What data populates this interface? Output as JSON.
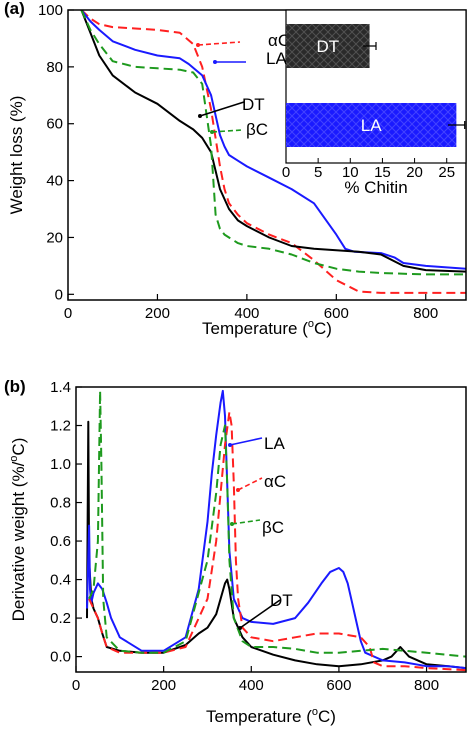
{
  "chart_data": [
    {
      "panel_label": "(a)",
      "type": "line",
      "xlabel": "Temperature (",
      "xlabel_sup": "o",
      "xlabel_tail": "C)",
      "ylabel": "Weight loss (%)",
      "xlim": [
        0,
        890
      ],
      "ylim": [
        -2,
        100
      ],
      "xticks": [
        0,
        200,
        400,
        600,
        800
      ],
      "yticks": [
        0,
        20,
        40,
        60,
        80,
        100
      ],
      "series": [
        {
          "name": "αC",
          "color": "#ff2020",
          "style": "dashed",
          "x": [
            30,
            50,
            70,
            100,
            150,
            200,
            250,
            280,
            300,
            320,
            340,
            350,
            360,
            380,
            400,
            450,
            500,
            550,
            600,
            650,
            700,
            750,
            800,
            890
          ],
          "y": [
            100,
            97,
            95,
            94,
            93.5,
            93,
            92,
            88,
            80,
            65,
            45,
            37,
            32,
            28,
            25,
            21,
            18,
            12,
            5,
            1,
            0.5,
            0.5,
            0.5,
            0.5
          ]
        },
        {
          "name": "LA",
          "color": "#1a1aff",
          "style": "solid",
          "x": [
            30,
            50,
            70,
            100,
            150,
            200,
            250,
            270,
            300,
            320,
            340,
            350,
            360,
            380,
            400,
            450,
            500,
            550,
            600,
            620,
            640,
            700,
            730,
            750,
            800,
            890
          ],
          "y": [
            100,
            96,
            93,
            89,
            86,
            84,
            83,
            81,
            77,
            70,
            56,
            52,
            49,
            47,
            45,
            41,
            37,
            32,
            21,
            16,
            15,
            14.5,
            13,
            11,
            10,
            9
          ]
        },
        {
          "name": "DT",
          "color": "#000000",
          "style": "solid",
          "x": [
            30,
            50,
            70,
            100,
            150,
            200,
            250,
            280,
            300,
            320,
            340,
            360,
            380,
            400,
            450,
            500,
            550,
            600,
            650,
            700,
            750,
            800,
            890
          ],
          "y": [
            100,
            92,
            84,
            77,
            71,
            67,
            61,
            58,
            55,
            50,
            37,
            30,
            26,
            24,
            20,
            17,
            16,
            15.5,
            15,
            14,
            10,
            8.5,
            8
          ]
        },
        {
          "name": "βC",
          "color": "#1e9a1e",
          "style": "dashed",
          "x": [
            30,
            50,
            70,
            100,
            150,
            200,
            250,
            280,
            300,
            320,
            330,
            340,
            350,
            360,
            380,
            400,
            450,
            500,
            550,
            600,
            650,
            700,
            800,
            890
          ],
          "y": [
            100,
            93,
            88,
            82,
            80,
            79.5,
            79,
            78,
            74,
            52,
            28,
            23,
            21,
            20,
            18,
            17,
            16,
            14,
            11,
            9,
            8,
            7.5,
            7,
            7
          ]
        }
      ],
      "series_labels": [
        {
          "text": "αC"
        },
        {
          "text": "LA"
        },
        {
          "text": "DT"
        },
        {
          "text": "βC"
        }
      ],
      "inset": {
        "type": "bar",
        "orientation": "horizontal",
        "xlabel": "% Chitin",
        "xlim": [
          0,
          28
        ],
        "xticks": [
          0,
          5,
          10,
          15,
          20,
          25
        ],
        "bars": [
          {
            "label": "DT",
            "value": 13,
            "error": 1,
            "color": "#2a2a2a",
            "label_color": "#ffffff"
          },
          {
            "label": "LA",
            "value": 26.5,
            "error": 1.3,
            "color": "#1a1aff",
            "label_color": "#ffffff"
          }
        ]
      }
    },
    {
      "panel_label": "(b)",
      "type": "line",
      "xlabel": "Temperature (",
      "xlabel_sup": "o",
      "xlabel_tail": "C)",
      "ylabel": "Derivative weight (%/",
      "ylabel_sup": "o",
      "ylabel_tail": "C)",
      "xlim": [
        0,
        890
      ],
      "ylim": [
        -0.08,
        1.4
      ],
      "xticks": [
        0,
        200,
        400,
        600,
        800
      ],
      "yticks": [
        0.0,
        0.2,
        0.4,
        0.6,
        0.8,
        1.0,
        1.2,
        1.4
      ],
      "ytick_labels": [
        "0.0",
        "0.2",
        "0.4",
        "0.6",
        "0.8",
        "1.0",
        "1.2",
        "1.4"
      ],
      "series": [
        {
          "name": "DT",
          "color": "#000000",
          "style": "solid",
          "x": [
            25,
            28,
            30,
            35,
            40,
            50,
            60,
            70,
            100,
            150,
            200,
            250,
            280,
            300,
            320,
            330,
            340,
            345,
            350,
            360,
            380,
            400,
            450,
            500,
            550,
            600,
            650,
            700,
            720,
            740,
            760,
            800,
            850,
            890
          ],
          "y": [
            0.2,
            1.22,
            0.5,
            0.3,
            0.25,
            0.2,
            0.12,
            0.05,
            0.03,
            0.02,
            0.02,
            0.06,
            0.12,
            0.15,
            0.22,
            0.3,
            0.38,
            0.4,
            0.35,
            0.2,
            0.1,
            0.05,
            0.01,
            -0.02,
            -0.04,
            -0.05,
            -0.04,
            -0.02,
            0.0,
            0.05,
            0.0,
            -0.04,
            -0.05,
            -0.06
          ]
        },
        {
          "name": "LA",
          "color": "#1a1aff",
          "style": "solid",
          "x": [
            25,
            30,
            32,
            35,
            40,
            50,
            60,
            70,
            80,
            100,
            150,
            200,
            250,
            280,
            300,
            310,
            320,
            330,
            335,
            340,
            345,
            350,
            360,
            380,
            400,
            450,
            500,
            530,
            560,
            580,
            600,
            610,
            620,
            630,
            640,
            650,
            660,
            700,
            750,
            800,
            850,
            890
          ],
          "y": [
            0.25,
            0.68,
            0.35,
            0.28,
            0.33,
            0.38,
            0.35,
            0.28,
            0.2,
            0.1,
            0.03,
            0.03,
            0.1,
            0.35,
            0.7,
            0.95,
            1.15,
            1.32,
            1.38,
            1.25,
            0.9,
            0.55,
            0.3,
            0.2,
            0.18,
            0.17,
            0.2,
            0.28,
            0.38,
            0.44,
            0.46,
            0.44,
            0.38,
            0.28,
            0.18,
            0.08,
            0.02,
            -0.02,
            -0.03,
            -0.05,
            -0.05,
            -0.06
          ]
        },
        {
          "name": "αC",
          "color": "#ff2020",
          "style": "dashed",
          "x": [
            30,
            40,
            50,
            60,
            70,
            100,
            150,
            200,
            250,
            300,
            320,
            340,
            350,
            355,
            360,
            365,
            370,
            380,
            400,
            450,
            500,
            550,
            600,
            650,
            670,
            680,
            700,
            750,
            800,
            890
          ],
          "y": [
            0.3,
            0.25,
            0.2,
            0.12,
            0.05,
            0.02,
            0.02,
            0.02,
            0.05,
            0.3,
            0.6,
            1.1,
            1.27,
            1.2,
            0.9,
            0.5,
            0.3,
            0.15,
            0.1,
            0.08,
            0.1,
            0.12,
            0.12,
            0.1,
            0.05,
            -0.03,
            -0.05,
            -0.05,
            -0.06,
            -0.07
          ]
        },
        {
          "name": "βC",
          "color": "#1e9a1e",
          "style": "dashed",
          "x": [
            30,
            40,
            50,
            55,
            58,
            62,
            70,
            100,
            150,
            200,
            250,
            300,
            320,
            330,
            340,
            345,
            350,
            360,
            380,
            400,
            450,
            500,
            550,
            600,
            650,
            700,
            750,
            800,
            890
          ],
          "y": [
            0.3,
            0.35,
            0.6,
            1.38,
            1.0,
            0.3,
            0.1,
            0.03,
            0.02,
            0.02,
            0.08,
            0.5,
            0.85,
            1.1,
            1.2,
            0.9,
            0.5,
            0.2,
            0.08,
            0.05,
            0.05,
            0.04,
            0.02,
            0.02,
            0.03,
            0.04,
            0.03,
            0.02,
            0.0
          ]
        }
      ],
      "series_labels": [
        {
          "text": "LA"
        },
        {
          "text": "αC"
        },
        {
          "text": "βC"
        },
        {
          "text": "DT"
        }
      ]
    }
  ]
}
